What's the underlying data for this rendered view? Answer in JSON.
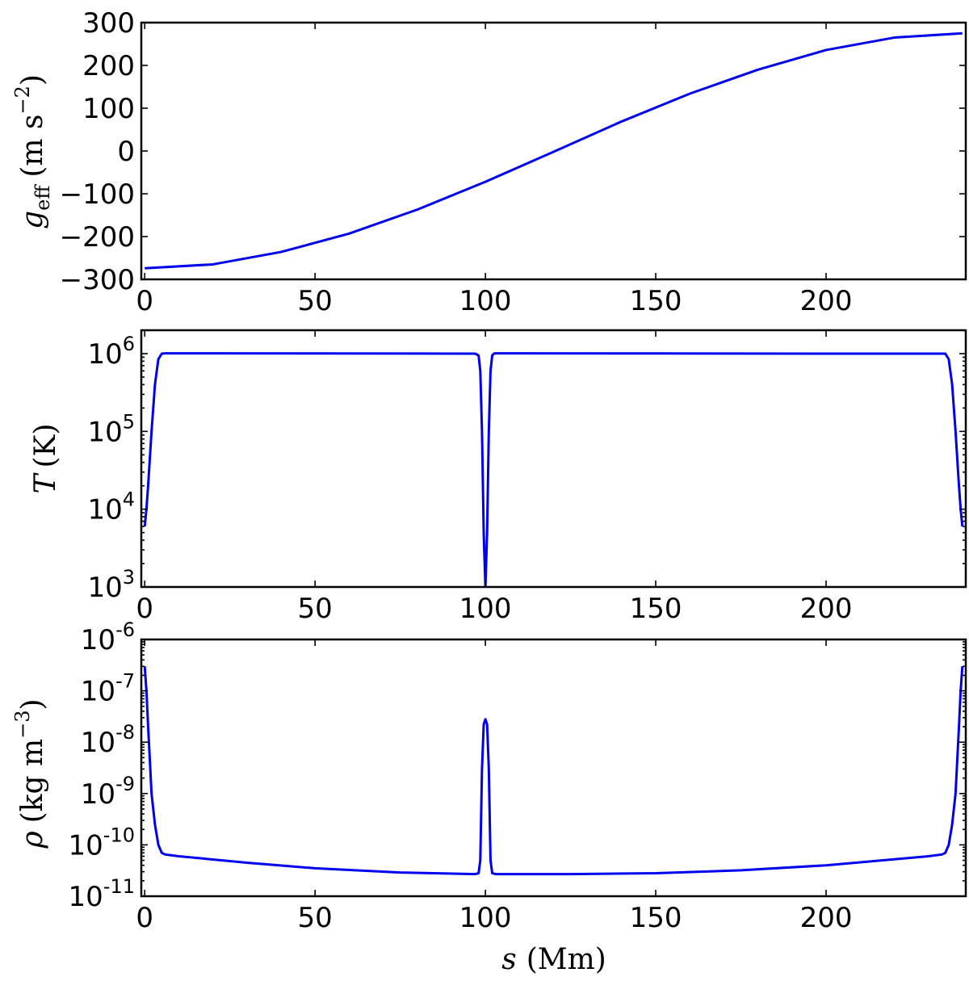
{
  "chart_data": [
    {
      "type": "line",
      "panel": "top",
      "xlim": [
        -1,
        241
      ],
      "ylim": [
        -300,
        300
      ],
      "yscale": "linear",
      "grid": false,
      "color": "#0000ee",
      "x_ticks": [
        0,
        50,
        100,
        150,
        200
      ],
      "y_ticks": [
        -300,
        -200,
        -100,
        0,
        100,
        200,
        300
      ],
      "x_tick_labels": [
        "0",
        "50",
        "100",
        "150",
        "200"
      ],
      "y_tick_labels": [
        "−300",
        "−200",
        "−100",
        "0",
        "100",
        "200",
        "300"
      ],
      "ylabel": {
        "symbol": "g",
        "sub": "eff",
        "unit_pre": "(m s",
        "unit_exp": "−2",
        "unit_post": ")"
      },
      "x": [
        0,
        20,
        40,
        60,
        80,
        100,
        120,
        140,
        160,
        180,
        200,
        220,
        240
      ],
      "y": [
        -274,
        -265,
        -236,
        -193,
        -137,
        -72,
        -2,
        69,
        134,
        190,
        236,
        265,
        275
      ]
    },
    {
      "type": "line",
      "panel": "middle",
      "xlim": [
        -1,
        241
      ],
      "ylim": [
        1000,
        2000000
      ],
      "yscale": "log",
      "grid": false,
      "color": "#0000ee",
      "x_ticks": [
        0,
        50,
        100,
        150,
        200
      ],
      "x_tick_labels": [
        "0",
        "50",
        "100",
        "150",
        "200"
      ],
      "y_ticks": [
        1000,
        10000,
        100000,
        1000000
      ],
      "y_tick_labels": [
        {
          "base": "10",
          "exp": "3"
        },
        {
          "base": "10",
          "exp": "4"
        },
        {
          "base": "10",
          "exp": "5"
        },
        {
          "base": "10",
          "exp": "6"
        }
      ],
      "ylabel": {
        "symbol": "T",
        "unit": "(K)"
      },
      "x": [
        0,
        0.5,
        1,
        2,
        3,
        4,
        5,
        6,
        10,
        50,
        95,
        97,
        98,
        98.5,
        99,
        99.5,
        100,
        100.5,
        101,
        101.5,
        102,
        102.5,
        103,
        105,
        150,
        200,
        234,
        235,
        236,
        237,
        238,
        239,
        239.5,
        240
      ],
      "y": [
        6000,
        10000,
        20000,
        100000,
        400000,
        850000,
        1000000,
        1010000,
        1010000,
        1005000,
        1000000,
        1000000,
        950000,
        600000,
        100000,
        5000,
        1000,
        5000,
        100000,
        600000,
        950000,
        1000000,
        1010000,
        1010000,
        1005000,
        1000000,
        1000000,
        1000000,
        850000,
        400000,
        100000,
        20000,
        10000,
        6000
      ]
    },
    {
      "type": "line",
      "panel": "bottom",
      "xlabel": {
        "symbol": "s",
        "unit": "(Mm)"
      },
      "xlim": [
        -1,
        241
      ],
      "ylim": [
        1e-11,
        1e-06
      ],
      "yscale": "log",
      "grid": false,
      "color": "#0000ee",
      "x_ticks": [
        0,
        50,
        100,
        150,
        200
      ],
      "x_tick_labels": [
        "0",
        "50",
        "100",
        "150",
        "200"
      ],
      "y_ticks": [
        1e-11,
        1e-10,
        1e-09,
        1e-08,
        1e-07,
        1e-06
      ],
      "y_tick_labels": [
        {
          "base": "10",
          "exp": "-11"
        },
        {
          "base": "10",
          "exp": "-10"
        },
        {
          "base": "10",
          "exp": "-9"
        },
        {
          "base": "10",
          "exp": "-8"
        },
        {
          "base": "10",
          "exp": "-7"
        },
        {
          "base": "10",
          "exp": "-6"
        }
      ],
      "ylabel": {
        "symbol": "ρ",
        "unit_pre": "(kg m",
        "unit_exp": "−3",
        "unit_post": ")"
      },
      "x": [
        0,
        0.5,
        1,
        2,
        3,
        4,
        5,
        6,
        10,
        30,
        50,
        75,
        97,
        98,
        98.5,
        99,
        99.5,
        100,
        100.5,
        101,
        101.5,
        102,
        103,
        125,
        150,
        175,
        200,
        230,
        234,
        235,
        236,
        237,
        238,
        239,
        239.5,
        240
      ],
      "y": [
        3e-07,
        1e-07,
        2e-08,
        1e-09,
        2.5e-10,
        1e-10,
        7e-11,
        6.5e-11,
        6e-11,
        4.5e-11,
        3.5e-11,
        2.9e-11,
        2.7e-11,
        2.8e-11,
        5e-11,
        3e-09,
        2.2e-08,
        2.8e-08,
        2.2e-08,
        3e-09,
        5e-11,
        2.8e-11,
        2.7e-11,
        2.7e-11,
        2.8e-11,
        3.2e-11,
        4e-11,
        6e-11,
        6.5e-11,
        7e-11,
        1e-10,
        2.5e-10,
        1e-09,
        2e-08,
        1e-07,
        3e-07
      ]
    }
  ]
}
